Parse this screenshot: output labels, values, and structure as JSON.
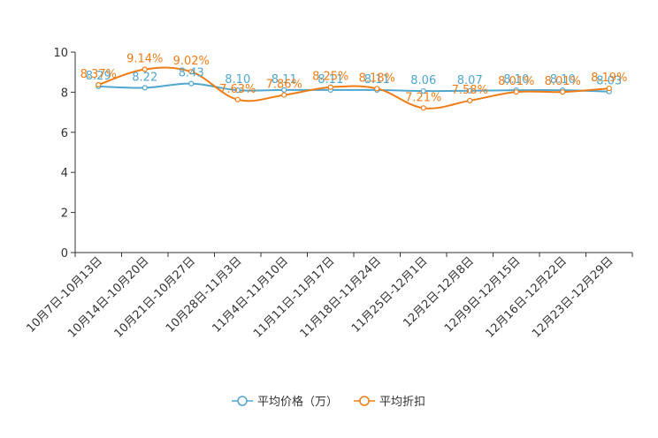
{
  "chart_data": {
    "type": "line",
    "title": "",
    "xlabel": "",
    "ylabel": "",
    "ylim": [
      0,
      10
    ],
    "yticks": [
      0,
      2,
      4,
      6,
      8,
      10
    ],
    "grid": false,
    "legend_position": "bottom",
    "categories": [
      "10月7日-10月13日",
      "10月14日-10月20日",
      "10月21日-10月27日",
      "10月28日-11月3日",
      "11月4日-11月10日",
      "11月11日-11月17日",
      "11月18日-11月24日",
      "11月25日-12月1日",
      "12月2日-12月8日",
      "12月9日-12月15日",
      "12月16日-12月22日",
      "12月23日-12月29日"
    ],
    "series": [
      {
        "name": "平均价格（万）",
        "color": "#4fa6cf",
        "values": [
          8.29,
          8.22,
          8.43,
          8.1,
          8.11,
          8.11,
          8.11,
          8.06,
          8.07,
          8.1,
          8.1,
          8.03
        ],
        "labels": [
          "8.29",
          "8.22",
          "8.43",
          "8.10",
          "8.11",
          "8.11",
          "8.11",
          "8.06",
          "8.07",
          "8.10",
          "8.10",
          "8.03"
        ]
      },
      {
        "name": "平均折扣",
        "color": "#f07c16",
        "values": [
          8.37,
          9.14,
          9.02,
          7.63,
          7.86,
          8.25,
          8.18,
          7.21,
          7.58,
          8.01,
          8.01,
          8.19
        ],
        "labels": [
          "8.37%",
          "9.14%",
          "9.02%",
          "7.63%",
          "7.86%",
          "8.25%",
          "8.18%",
          "7.21%",
          "7.58%",
          "8.01%",
          "8.01%",
          "8.19%"
        ]
      }
    ]
  }
}
